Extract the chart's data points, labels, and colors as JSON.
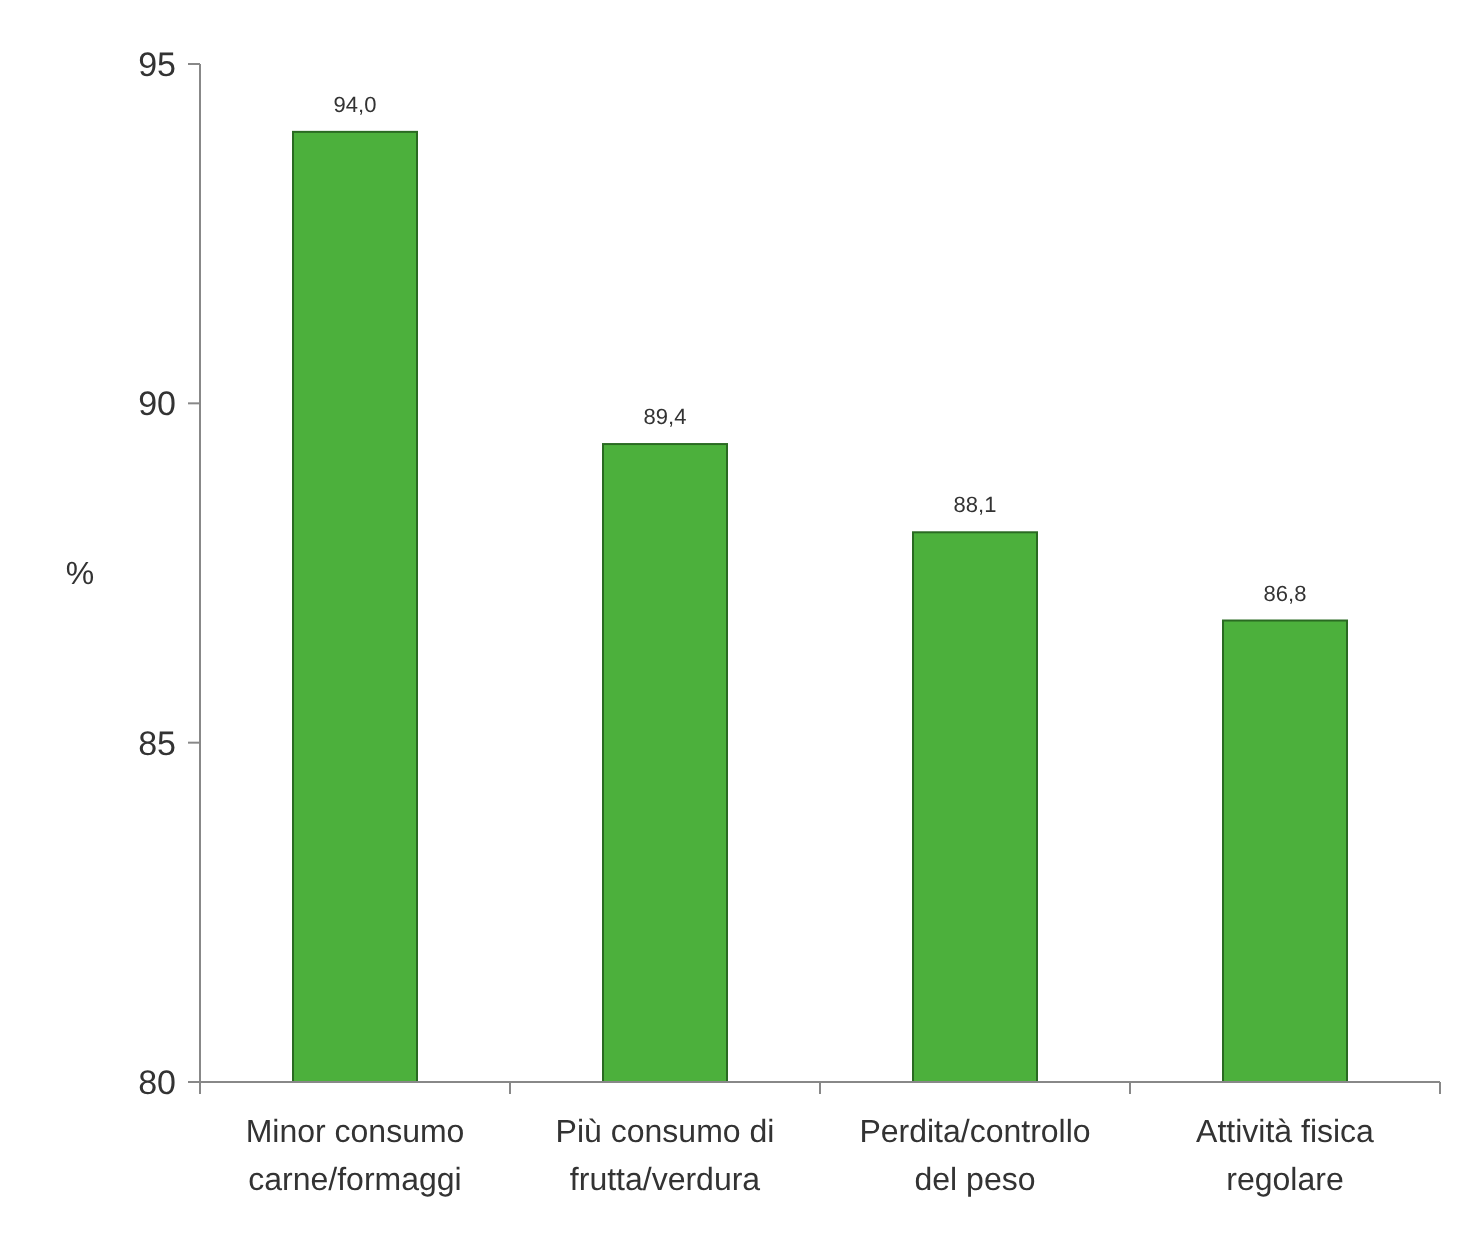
{
  "chart_data": {
    "type": "bar",
    "ylabel": "%",
    "categories": [
      "Minor consumo carne/formaggi",
      "Più consumo di frutta/verdura",
      "Perdita/controllo del peso",
      "Attività fisica regolare"
    ],
    "values": [
      94.0,
      89.4,
      88.1,
      86.8
    ],
    "value_labels": [
      "94,0",
      "89,4",
      "88,1",
      "86,8"
    ],
    "color": "#4cb03c",
    "ylim": [
      80,
      95
    ],
    "yticks": [
      80,
      85,
      90,
      95
    ],
    "grid": false
  }
}
